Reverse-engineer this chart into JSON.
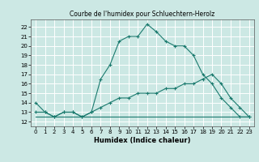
{
  "title": "Courbe de l'humidex pour Schluechtern-Herolz",
  "xlabel": "Humidex (Indice chaleur)",
  "background_color": "#cce8e4",
  "grid_color": "#ffffff",
  "line_color": "#1a7a6e",
  "xlim": [
    -0.5,
    23.5
  ],
  "ylim": [
    11.5,
    22.8
  ],
  "xticks": [
    0,
    1,
    2,
    3,
    4,
    5,
    6,
    7,
    8,
    9,
    10,
    11,
    12,
    13,
    14,
    15,
    16,
    17,
    18,
    19,
    20,
    21,
    22,
    23
  ],
  "yticks": [
    12,
    13,
    14,
    15,
    16,
    17,
    18,
    19,
    20,
    21,
    22
  ],
  "line1_x": [
    0,
    1,
    2,
    3,
    4,
    5,
    6,
    7,
    8,
    9,
    10,
    11,
    12,
    13,
    14,
    15,
    16,
    17,
    18,
    19,
    20,
    21,
    22,
    23
  ],
  "line1_y": [
    14,
    13,
    12.5,
    13,
    13,
    12.5,
    13,
    16.5,
    18,
    20.5,
    21,
    21,
    22.3,
    21.5,
    20.5,
    20,
    20,
    19,
    17,
    16,
    14.5,
    13.5,
    12.5,
    12.5
  ],
  "line2_x": [
    0,
    1,
    2,
    3,
    4,
    5,
    6,
    7,
    8,
    9,
    10,
    11,
    12,
    13,
    14,
    15,
    16,
    17,
    18,
    19,
    20,
    21,
    22,
    23
  ],
  "line2_y": [
    13,
    13,
    12.5,
    13,
    13,
    12.5,
    13,
    13.5,
    14,
    14.5,
    14.5,
    15,
    15,
    15,
    15.5,
    15.5,
    16,
    16,
    16.5,
    17,
    16,
    14.5,
    13.5,
    12.5
  ],
  "line3_x": [
    0,
    23
  ],
  "line3_y": [
    12.5,
    12.5
  ]
}
